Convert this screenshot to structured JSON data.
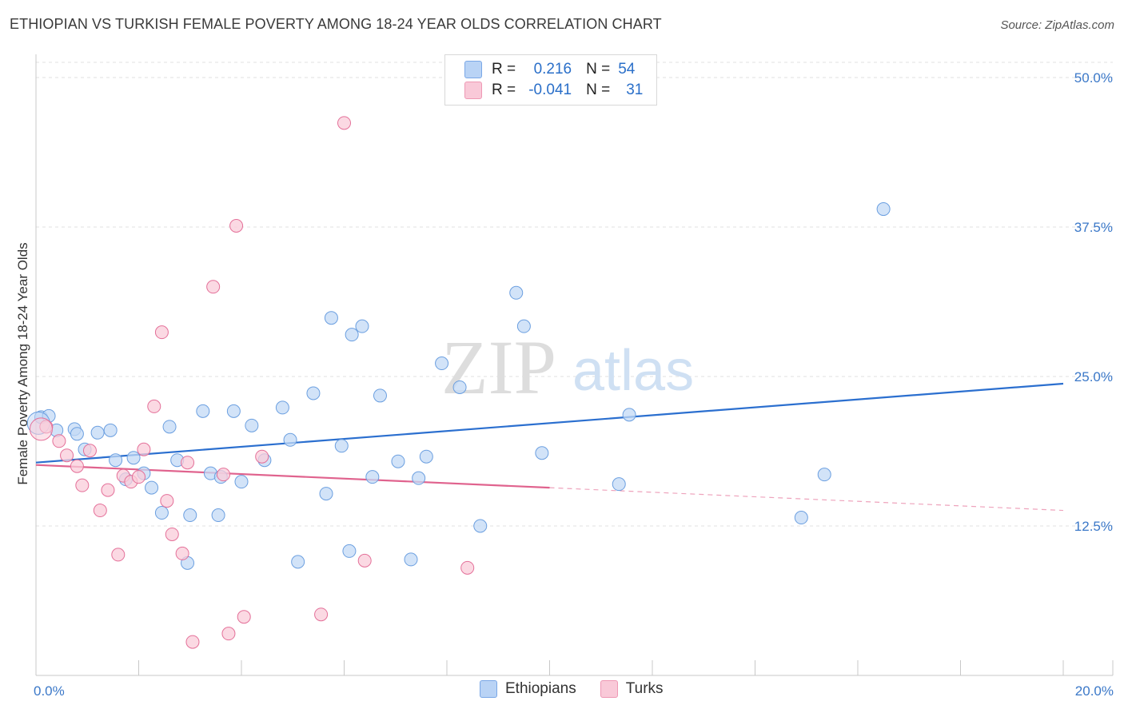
{
  "title": "ETHIOPIAN VS TURKISH FEMALE POVERTY AMONG 18-24 YEAR OLDS CORRELATION CHART",
  "source": "Source: ZipAtlas.com",
  "watermark": {
    "zip": "ZIP",
    "atlas": "atlas"
  },
  "legend": {
    "r_label": "R =",
    "n_label": "N =",
    "rows": [
      {
        "r": "0.216",
        "n": "54",
        "fill": "#b9d3f5",
        "stroke": "#7aa7e6"
      },
      {
        "r": "-0.041",
        "n": "31",
        "fill": "#f9c9d8",
        "stroke": "#ee98b4"
      }
    ]
  },
  "chart_data": {
    "type": "scatter",
    "xlabel": "",
    "ylabel": "Female Poverty Among 18-24 Year Olds",
    "xlim": [
      0,
      20
    ],
    "ylim": [
      0,
      50
    ],
    "x_tick_labels": [
      "0.0%",
      "20.0%"
    ],
    "y_ticks": [
      12.5,
      25.0,
      37.5,
      50.0
    ],
    "y_tick_labels": [
      "12.5%",
      "25.0%",
      "37.5%",
      "50.0%"
    ],
    "grid": true,
    "legend_position": "bottom-center",
    "series": [
      {
        "name": "Ethiopians",
        "color": "#6b9fe0",
        "fill": "#c3d9f6",
        "trend": {
          "x": [
            0,
            20
          ],
          "y": [
            17.8,
            24.4
          ],
          "dashed_from": null
        },
        "points": [
          [
            0.1,
            21.6
          ],
          [
            0.25,
            21.7
          ],
          [
            0.4,
            20.5
          ],
          [
            0.75,
            20.6
          ],
          [
            0.8,
            20.2
          ],
          [
            0.95,
            18.9
          ],
          [
            1.2,
            20.3
          ],
          [
            1.45,
            20.5
          ],
          [
            1.55,
            18.0
          ],
          [
            1.75,
            16.4
          ],
          [
            1.9,
            18.2
          ],
          [
            2.1,
            16.9
          ],
          [
            2.25,
            15.7
          ],
          [
            2.45,
            13.6
          ],
          [
            2.6,
            20.8
          ],
          [
            2.75,
            18.0
          ],
          [
            2.95,
            9.4
          ],
          [
            3.0,
            13.4
          ],
          [
            3.25,
            22.1
          ],
          [
            3.4,
            16.9
          ],
          [
            3.55,
            13.4
          ],
          [
            3.6,
            16.6
          ],
          [
            3.85,
            22.1
          ],
          [
            4.0,
            16.2
          ],
          [
            4.2,
            20.9
          ],
          [
            4.45,
            18.0
          ],
          [
            4.8,
            22.4
          ],
          [
            4.95,
            19.7
          ],
          [
            5.1,
            9.5
          ],
          [
            5.4,
            23.6
          ],
          [
            5.65,
            15.2
          ],
          [
            5.75,
            29.9
          ],
          [
            5.95,
            19.2
          ],
          [
            6.1,
            10.4
          ],
          [
            6.15,
            28.5
          ],
          [
            6.35,
            29.2
          ],
          [
            6.55,
            16.6
          ],
          [
            6.7,
            23.4
          ],
          [
            7.05,
            17.9
          ],
          [
            7.3,
            9.7
          ],
          [
            7.45,
            16.5
          ],
          [
            7.6,
            18.3
          ],
          [
            7.9,
            26.1
          ],
          [
            8.25,
            24.1
          ],
          [
            8.65,
            12.5
          ],
          [
            9.35,
            32.0
          ],
          [
            9.5,
            29.2
          ],
          [
            9.85,
            18.6
          ],
          [
            11.35,
            16.0
          ],
          [
            11.55,
            21.8
          ],
          [
            14.9,
            13.2
          ],
          [
            15.35,
            16.8
          ],
          [
            16.5,
            39.0
          ],
          [
            0.05,
            21.1
          ]
        ]
      },
      {
        "name": "Turks",
        "color": "#e47099",
        "fill": "#f9ccd9",
        "trend": {
          "x": [
            0,
            20
          ],
          "y": [
            17.6,
            13.8
          ],
          "dashed_from": 10
        },
        "points": [
          [
            0.2,
            20.8
          ],
          [
            0.45,
            19.6
          ],
          [
            0.6,
            18.4
          ],
          [
            0.8,
            17.5
          ],
          [
            0.9,
            15.9
          ],
          [
            1.05,
            18.8
          ],
          [
            1.25,
            13.8
          ],
          [
            1.4,
            15.5
          ],
          [
            1.6,
            10.1
          ],
          [
            1.7,
            16.7
          ],
          [
            1.85,
            16.2
          ],
          [
            2.0,
            16.6
          ],
          [
            2.1,
            18.9
          ],
          [
            2.3,
            22.5
          ],
          [
            2.45,
            28.7
          ],
          [
            2.55,
            14.6
          ],
          [
            2.65,
            11.8
          ],
          [
            2.85,
            10.2
          ],
          [
            2.95,
            17.8
          ],
          [
            3.05,
            2.8
          ],
          [
            3.45,
            32.5
          ],
          [
            3.65,
            16.8
          ],
          [
            3.75,
            3.5
          ],
          [
            3.9,
            37.6
          ],
          [
            4.05,
            4.9
          ],
          [
            4.4,
            18.3
          ],
          [
            5.55,
            5.1
          ],
          [
            6.0,
            46.2
          ],
          [
            6.4,
            9.6
          ],
          [
            8.4,
            9.0
          ],
          [
            0.1,
            20.6
          ]
        ]
      }
    ]
  },
  "bottom_legend": [
    {
      "label": "Ethiopians",
      "fill": "#b9d3f5",
      "stroke": "#7aa7e6"
    },
    {
      "label": "Turks",
      "fill": "#f9c9d8",
      "stroke": "#ee98b4"
    }
  ]
}
